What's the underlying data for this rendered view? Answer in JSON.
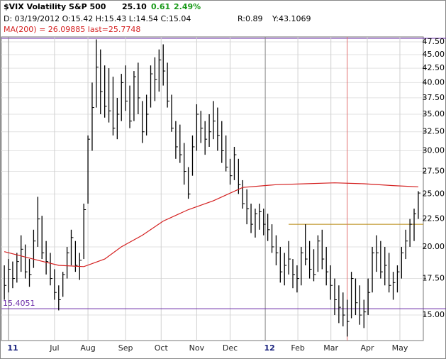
{
  "chart_data": {
    "type": "ohlc",
    "title": "$VIX Volatility S&P 500",
    "last": "25.10",
    "change": "0.61",
    "change_pct": "2.49%",
    "change_color": "#1a9a1a",
    "info": "D: 03/19/2012 O:15.42 H:15.43 L:14.54 C:15.04",
    "r_label": "R:0.89",
    "y_label": "Y:43.1069",
    "ma_label": "MA(200) = 26.09885 last=25.7748",
    "log_scale": true,
    "grid": true,
    "bar_color": "#000000",
    "ylim": [
      13.47,
      48.5
    ],
    "xlim": [
      -0.7,
      100.2
    ],
    "yticks": [
      {
        "value": 15,
        "label": "15.00"
      },
      {
        "value": 17.5,
        "label": "17.50"
      },
      {
        "value": 20,
        "label": "20.00"
      },
      {
        "value": 22.5,
        "label": "22.50"
      },
      {
        "value": 25,
        "label": "25.00"
      },
      {
        "value": 27.5,
        "label": "27.50"
      },
      {
        "value": 30,
        "label": "30.00"
      },
      {
        "value": 32.5,
        "label": "32.50"
      },
      {
        "value": 35,
        "label": "35.00"
      },
      {
        "value": 37.5,
        "label": "37.50"
      },
      {
        "value": 40,
        "label": "40.00"
      },
      {
        "value": 42.5,
        "label": "42.50"
      },
      {
        "value": 45,
        "label": "45.00"
      },
      {
        "value": 47.5,
        "label": "47.50"
      }
    ],
    "xticks": [
      {
        "value": 1,
        "label": "11"
      },
      {
        "value": 12,
        "label": "Jul"
      },
      {
        "value": 20,
        "label": "Aug"
      },
      {
        "value": 29,
        "label": "Sep"
      },
      {
        "value": 37.5,
        "label": "Oct"
      },
      {
        "value": 46,
        "label": "Nov"
      },
      {
        "value": 54,
        "label": "Dec"
      },
      {
        "value": 62.4,
        "label": "12"
      },
      {
        "value": 70.2,
        "label": "Feb"
      },
      {
        "value": 78.1,
        "label": "Mar"
      },
      {
        "value": 86.8,
        "label": "Apr"
      },
      {
        "value": 94.6,
        "label": "May"
      }
    ],
    "high": [
      18.5,
      19.0,
      18.8,
      19.5,
      21.0,
      20.2,
      19.0,
      21.5,
      24.7,
      22.8,
      20.5,
      19.5,
      18.2,
      17.0,
      18.0,
      20.0,
      21.5,
      20.5,
      19.5,
      24.0,
      32.0,
      40.0,
      48.0,
      46.0,
      43.0,
      42.5,
      41.0,
      37.5,
      41.5,
      43.0,
      39.5,
      42.0,
      43.5,
      37.0,
      38.0,
      43.0,
      44.5,
      46.0,
      47.0,
      43.5,
      38.0,
      34.0,
      33.5,
      31.0,
      28.0,
      32.0,
      36.5,
      35.5,
      34.0,
      35.0,
      37.0,
      36.0,
      34.0,
      32.0,
      29.0,
      30.5,
      29.0,
      26.5,
      25.5,
      24.0,
      23.5,
      24.0,
      23.5,
      23.0,
      22.0,
      21.0,
      20.0,
      19.5,
      20.5,
      19.0,
      18.5,
      20.0,
      22.0,
      20.5,
      19.8,
      21.0,
      21.5,
      20.0,
      18.5,
      17.5,
      17.0,
      16.5,
      16.0,
      18.0,
      17.5,
      17.0,
      16.0,
      17.5,
      20.0,
      21.0,
      20.5,
      20.0,
      19.5,
      18.0,
      18.5,
      20.0,
      21.5,
      22.5,
      23.5,
      25.3
    ],
    "low": [
      16.0,
      16.5,
      16.8,
      17.2,
      18.0,
      17.5,
      16.9,
      18.3,
      20.0,
      19.0,
      17.8,
      17.0,
      16.0,
      15.3,
      16.2,
      17.5,
      18.5,
      18.0,
      17.4,
      19.0,
      24.0,
      30.0,
      36.0,
      35.0,
      34.5,
      33.8,
      32.0,
      31.5,
      34.0,
      35.5,
      33.0,
      34.0,
      35.0,
      31.0,
      32.0,
      36.0,
      37.0,
      38.5,
      39.5,
      36.0,
      32.5,
      29.0,
      28.5,
      26.0,
      24.5,
      27.0,
      30.0,
      31.0,
      29.5,
      30.5,
      31.5,
      30.0,
      28.5,
      27.5,
      26.0,
      26.5,
      25.0,
      23.5,
      22.0,
      21.2,
      20.8,
      21.5,
      21.0,
      20.5,
      19.5,
      18.5,
      17.2,
      17.0,
      17.8,
      16.8,
      16.5,
      17.0,
      18.5,
      17.5,
      17.3,
      18.0,
      18.2,
      17.0,
      16.0,
      15.0,
      14.5,
      14.3,
      13.7,
      14.8,
      15.0,
      14.4,
      14.2,
      15.0,
      16.5,
      18.0,
      17.5,
      17.0,
      16.5,
      16.0,
      16.5,
      17.5,
      19.0,
      20.0,
      20.5,
      22.5
    ],
    "close": [
      17.0,
      18.2,
      17.5,
      18.8,
      19.8,
      18.0,
      17.8,
      20.5,
      22.5,
      19.5,
      18.8,
      17.5,
      16.5,
      16.0,
      17.8,
      19.5,
      20.8,
      18.5,
      18.9,
      23.4,
      31.5,
      36.0,
      42.7,
      38.5,
      36.2,
      35.5,
      33.0,
      35.0,
      40.0,
      37.0,
      34.0,
      41.0,
      37.5,
      32.5,
      35.0,
      41.5,
      40.5,
      44.0,
      42.0,
      37.0,
      33.0,
      30.5,
      29.5,
      27.5,
      25.0,
      30.5,
      35.0,
      33.0,
      31.5,
      32.5,
      34.0,
      32.0,
      30.0,
      28.0,
      27.0,
      29.5,
      26.0,
      24.0,
      23.5,
      22.0,
      23.0,
      23.2,
      22.0,
      21.5,
      20.0,
      19.5,
      18.0,
      18.5,
      19.0,
      17.8,
      17.5,
      19.5,
      19.0,
      18.2,
      17.8,
      20.5,
      19.0,
      18.0,
      17.0,
      16.0,
      15.5,
      15.0,
      14.6,
      17.5,
      15.8,
      15.0,
      15.2,
      16.5,
      19.5,
      19.5,
      18.0,
      18.5,
      17.0,
      17.2,
      18.0,
      19.5,
      20.5,
      22.0,
      23.0,
      25.1
    ],
    "ma": {
      "color": "#d42020",
      "x": [
        0,
        8,
        13,
        19,
        24,
        28,
        33,
        38,
        44,
        50,
        57,
        65,
        72,
        79,
        86,
        93,
        99
      ],
      "values": [
        19.6,
        18.9,
        18.5,
        18.4,
        19.0,
        20.0,
        21.0,
        22.3,
        23.4,
        24.3,
        25.7,
        26.0,
        26.1,
        26.2,
        26.1,
        25.9,
        25.77
      ]
    },
    "hlines": [
      {
        "value": 15.4051,
        "label": "15.4051",
        "color": "#6a2aa8"
      },
      {
        "value": 22.0,
        "from": 68,
        "color": "#b8860b"
      }
    ],
    "vline": {
      "x": 82,
      "color": "#e07070"
    }
  }
}
